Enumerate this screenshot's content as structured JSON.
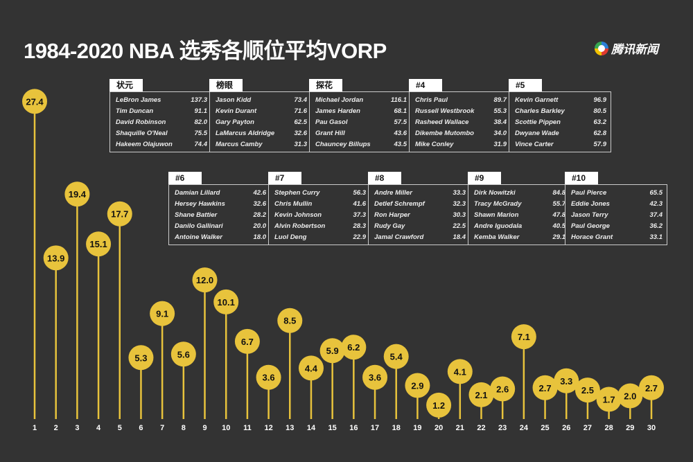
{
  "title": "1984-2020 NBA 选秀各顺位平均VORP",
  "logo_text": "腾讯新闻",
  "colors": {
    "background": "#333333",
    "accent": "#e8c33c",
    "text": "#ffffff"
  },
  "chart_data": {
    "type": "lollipop",
    "title": "1984-2020 NBA 选秀各顺位平均VORP",
    "categories": [
      "1",
      "2",
      "3",
      "4",
      "5",
      "6",
      "7",
      "8",
      "9",
      "10",
      "11",
      "12",
      "13",
      "14",
      "15",
      "16",
      "17",
      "18",
      "19",
      "20",
      "21",
      "22",
      "23",
      "24",
      "25",
      "26",
      "27",
      "28",
      "29",
      "30"
    ],
    "values": [
      27.4,
      13.9,
      19.4,
      15.1,
      17.7,
      5.3,
      9.1,
      5.6,
      12.0,
      10.1,
      6.7,
      3.6,
      8.5,
      4.4,
      5.9,
      6.2,
      3.6,
      5.4,
      2.9,
      1.2,
      4.1,
      2.1,
      2.6,
      7.1,
      2.7,
      3.3,
      2.5,
      1.7,
      2.0,
      2.7
    ],
    "ylim": [
      0,
      28
    ],
    "grid": false
  },
  "tables": [
    {
      "label": "状元",
      "rows": [
        [
          "LeBron James",
          "137.3"
        ],
        [
          "Tim Duncan",
          "91.1"
        ],
        [
          "David Robinson",
          "82.0"
        ],
        [
          "Shaquille O'Neal",
          "75.5"
        ],
        [
          "Hakeem Olajuwon",
          "74.4"
        ]
      ]
    },
    {
      "label": "榜眼",
      "rows": [
        [
          "Jason Kidd",
          "73.4"
        ],
        [
          "Kevin Durant",
          "71.6"
        ],
        [
          "Gary Payton",
          "62.5"
        ],
        [
          "LaMarcus Aldridge",
          "32.6"
        ],
        [
          "Marcus Camby",
          "31.3"
        ]
      ]
    },
    {
      "label": "探花",
      "rows": [
        [
          "Michael Jordan",
          "116.1"
        ],
        [
          "James Harden",
          "68.1"
        ],
        [
          "Pau Gasol",
          "57.5"
        ],
        [
          "Grant Hill",
          "43.6"
        ],
        [
          "Chauncey Billups",
          "43.5"
        ]
      ]
    },
    {
      "label": "#4",
      "rows": [
        [
          "Chris Paul",
          "89.7"
        ],
        [
          "Russell Westbrook",
          "55.3"
        ],
        [
          "Rasheed Wallace",
          "38.4"
        ],
        [
          "Dikembe Mutombo",
          "34.0"
        ],
        [
          "Mike Conley",
          "31.9"
        ]
      ]
    },
    {
      "label": "#5",
      "rows": [
        [
          "Kevin Garnett",
          "96.9"
        ],
        [
          "Charles Barkley",
          "80.5"
        ],
        [
          "Scottie Pippen",
          "63.2"
        ],
        [
          "Dwyane Wade",
          "62.8"
        ],
        [
          "Vince Carter",
          "57.9"
        ]
      ]
    },
    {
      "label": "#6",
      "rows": [
        [
          "Damian Lillard",
          "42.6"
        ],
        [
          "Hersey Hawkins",
          "32.6"
        ],
        [
          "Shane Battier",
          "28.2"
        ],
        [
          "Danilo Gallinari",
          "20.0"
        ],
        [
          "Antoine Walker",
          "18.0"
        ]
      ]
    },
    {
      "label": "#7",
      "rows": [
        [
          "Stephen Curry",
          "56.3"
        ],
        [
          "Chris Mullin",
          "41.6"
        ],
        [
          "Kevin Johnson",
          "37.3"
        ],
        [
          "Alvin Robertson",
          "28.3"
        ],
        [
          "Luol Deng",
          "22.9"
        ]
      ]
    },
    {
      "label": "#8",
      "rows": [
        [
          "Andre Miller",
          "33.3"
        ],
        [
          "Detlef Schrempf",
          "32.3"
        ],
        [
          "Ron Harper",
          "30.3"
        ],
        [
          "Rudy Gay",
          "22.5"
        ],
        [
          "Jamal Crawford",
          "18.4"
        ]
      ]
    },
    {
      "label": "#9",
      "rows": [
        [
          "Dirk Nowitzki",
          "84.8"
        ],
        [
          "Tracy McGrady",
          "55.7"
        ],
        [
          "Shawn Marion",
          "47.8"
        ],
        [
          "Andre Iguodala",
          "40.5"
        ],
        [
          "Kemba Walker",
          "29.1"
        ]
      ]
    },
    {
      "label": "#10",
      "rows": [
        [
          "Paul Pierce",
          "65.5"
        ],
        [
          "Eddie Jones",
          "42.3"
        ],
        [
          "Jason Terry",
          "37.4"
        ],
        [
          "Paul George",
          "36.2"
        ],
        [
          "Horace Grant",
          "33.1"
        ]
      ]
    }
  ]
}
